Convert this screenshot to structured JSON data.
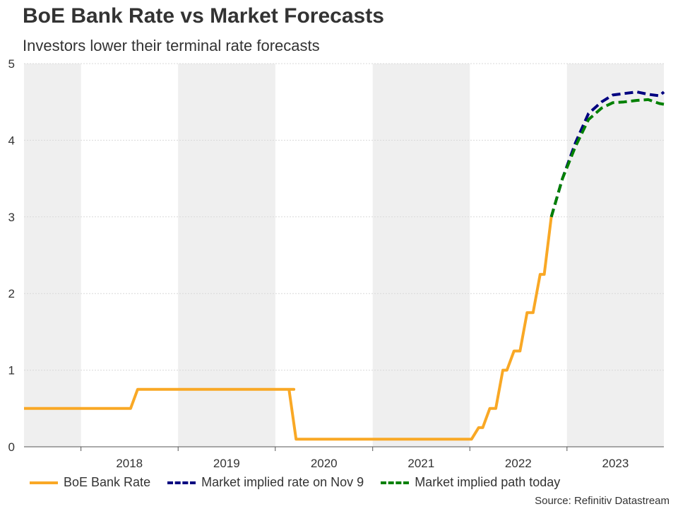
{
  "title": "BoE Bank Rate vs Market Forecasts",
  "subtitle": "Investors lower their terminal rate forecasts",
  "source": "Source: Refinitiv Datastream",
  "colors": {
    "bank_rate": "#f9a825",
    "nov9": "#000080",
    "today": "#008000",
    "band": "#efefef",
    "grid": "#d9d9d9"
  },
  "chart_data": {
    "type": "line",
    "title": "BoE Bank Rate vs Market Forecasts",
    "subtitle": "Investors lower their terminal rate forecasts",
    "xlabel": "",
    "ylabel": "",
    "ylim": [
      0,
      5
    ],
    "xlim": [
      "2017-06-01",
      "2023-12-31"
    ],
    "y_ticks": [
      "0",
      "1",
      "2",
      "3",
      "4",
      "5"
    ],
    "x_ticks": [
      "2018",
      "2019",
      "2020",
      "2021",
      "2022",
      "2023"
    ],
    "grid": true,
    "shaded_bands": "alternating years",
    "legend": "bottom",
    "series": [
      {
        "name": "BoE Bank Rate",
        "style": "solid",
        "color": "#f9a825",
        "x": [
          "2017-06-01",
          "2017-11-02",
          "2018-02-01",
          "2018-08-02",
          "2020-03-11",
          "2020-03-19",
          "2021-12-16",
          "2022-02-03",
          "2022-03-17",
          "2022-05-05",
          "2022-06-16",
          "2022-08-04",
          "2022-09-22",
          "2022-11-03"
        ],
        "values": [
          0.5,
          0.5,
          0.5,
          0.75,
          0.75,
          0.1,
          0.1,
          0.25,
          0.5,
          1.0,
          1.25,
          1.75,
          2.25,
          3.0
        ],
        "steps": true
      },
      {
        "name": "Market implied rate on Nov 9",
        "style": "dashed",
        "color": "#000080",
        "x": [
          "2022-11-03",
          "2022-12-15",
          "2023-02-02",
          "2023-03-23",
          "2023-05-11",
          "2023-06-22",
          "2023-08-03",
          "2023-09-21",
          "2023-11-02",
          "2023-12-14",
          "2023-12-31"
        ],
        "values": [
          3.0,
          3.5,
          3.97,
          4.35,
          4.5,
          4.59,
          4.61,
          4.63,
          4.6,
          4.58,
          4.63
        ]
      },
      {
        "name": "Market implied path today",
        "style": "dashed",
        "color": "#008000",
        "x": [
          "2022-11-03",
          "2022-12-15",
          "2023-02-02",
          "2023-03-23",
          "2023-05-11",
          "2023-06-22",
          "2023-08-03",
          "2023-09-21",
          "2023-11-02",
          "2023-12-14",
          "2023-12-31"
        ],
        "values": [
          3.0,
          3.5,
          3.92,
          4.27,
          4.42,
          4.49,
          4.5,
          4.52,
          4.53,
          4.48,
          4.47
        ]
      }
    ]
  }
}
